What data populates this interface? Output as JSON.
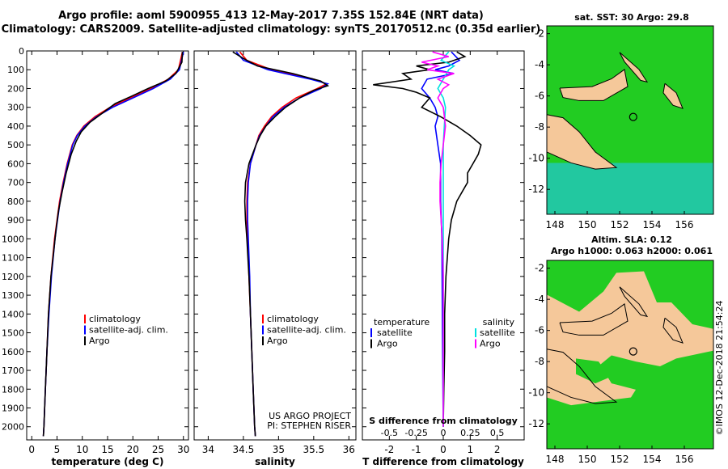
{
  "title": {
    "line1": "Argo profile: aoml 5900955_413 12-May-2017 7.35S 152.84E (NRT data)",
    "line2": "Climatology: CARS2009. Satellite-adjusted climatology: synTS_20170512.nc (0.35d earlier)"
  },
  "map_titles": {
    "sst": "sat. SST: 30 Argo: 29.8",
    "altim1": "Altim. SLA: 0.12",
    "altim2": "Argo h1000: 0.063 h2000: 0.061"
  },
  "credit": {
    "line1": "US ARGO PROJECT",
    "line2": "PI: STEPHEN RISER"
  },
  "timestamp": "©IMOS 12-Dec-2018 21:54:24",
  "colors": {
    "climatology": "#ff0000",
    "satellite": "#0000ff",
    "argo": "#000000",
    "sal_satellite": "#00e0e0",
    "sal_argo": "#ff00ff",
    "land": "#f5c89a",
    "warm_water": "#22cc22",
    "cool_water": "#22c8a0"
  },
  "chart_data": [
    {
      "type": "line",
      "name": "temperature",
      "xlabel": "temperature (deg C)",
      "ylabel": "",
      "xlim": [
        -1,
        31
      ],
      "ylim": [
        2070,
        0
      ],
      "xticks": [
        0,
        5,
        10,
        15,
        20,
        25,
        30
      ],
      "yticks": [
        0,
        100,
        200,
        300,
        400,
        500,
        600,
        700,
        800,
        900,
        1000,
        1100,
        1200,
        1300,
        1400,
        1500,
        1600,
        1700,
        1800,
        1900,
        2000
      ],
      "legend": [
        "climatology",
        "satellite-adj. clim.",
        "Argo"
      ],
      "series": [
        {
          "name": "climatology",
          "depth": [
            5,
            100,
            150,
            200,
            250,
            300,
            350,
            400,
            450,
            500,
            600,
            700,
            800,
            900,
            1000,
            1200,
            1400,
            1600,
            1800,
            2000,
            2050
          ],
          "values": [
            29.8,
            29.0,
            27.0,
            23.5,
            19.5,
            15.5,
            12.5,
            10.3,
            8.9,
            8.0,
            7.0,
            6.2,
            5.5,
            5.0,
            4.5,
            3.8,
            3.3,
            3.0,
            2.7,
            2.4,
            2.3
          ]
        },
        {
          "name": "satellite-adj. clim.",
          "depth": [
            5,
            100,
            150,
            200,
            250,
            300,
            350,
            400,
            450,
            500,
            600,
            700,
            800,
            900,
            1000,
            1200,
            1400,
            1600,
            1800,
            2000,
            2050
          ],
          "values": [
            30.0,
            29.2,
            27.4,
            24.0,
            20.0,
            16.0,
            12.8,
            10.5,
            9.0,
            8.1,
            7.1,
            6.3,
            5.6,
            5.1,
            4.6,
            3.9,
            3.4,
            3.0,
            2.7,
            2.4,
            2.3
          ]
        },
        {
          "name": "Argo",
          "depth": [
            5,
            60,
            120,
            160,
            200,
            240,
            280,
            330,
            380,
            430,
            480,
            550,
            650,
            750,
            850,
            950,
            1050,
            1200,
            1400,
            1600,
            1800,
            2000,
            2050
          ],
          "values": [
            29.8,
            29.7,
            28.5,
            26.5,
            23.0,
            19.8,
            16.5,
            14.0,
            11.5,
            9.8,
            8.8,
            7.8,
            6.8,
            6.0,
            5.3,
            4.8,
            4.4,
            3.8,
            3.3,
            3.0,
            2.7,
            2.4,
            2.3
          ]
        }
      ]
    },
    {
      "type": "line",
      "name": "salinity",
      "xlabel": "salinity",
      "xlim": [
        33.8,
        36.1
      ],
      "ylim": [
        2070,
        0
      ],
      "xticks": [
        34,
        34.5,
        35,
        35.5,
        36
      ],
      "legend": [
        "climatology",
        "satellite-adj. clim.",
        "Argo"
      ],
      "series": [
        {
          "name": "climatology",
          "depth": [
            5,
            50,
            100,
            150,
            175,
            200,
            250,
            300,
            350,
            400,
            450,
            500,
            600,
            700,
            800,
            900,
            1000,
            1200,
            1400,
            1600,
            1800,
            2000,
            2050
          ],
          "values": [
            34.45,
            34.55,
            34.9,
            35.5,
            35.68,
            35.55,
            35.25,
            35.05,
            34.9,
            34.8,
            34.72,
            34.68,
            34.6,
            34.56,
            34.55,
            34.55,
            34.56,
            34.58,
            34.6,
            34.62,
            34.64,
            34.66,
            34.67
          ]
        },
        {
          "name": "satellite-adj. clim.",
          "depth": [
            5,
            50,
            100,
            150,
            175,
            200,
            250,
            300,
            350,
            400,
            450,
            500,
            600,
            700,
            800,
            900,
            1000,
            1200,
            1400,
            1600,
            1800,
            2000,
            2050
          ],
          "values": [
            34.4,
            34.5,
            34.85,
            35.45,
            35.7,
            35.6,
            35.3,
            35.08,
            34.92,
            34.82,
            34.73,
            34.68,
            34.6,
            34.57,
            34.56,
            34.56,
            34.57,
            34.59,
            34.6,
            34.62,
            34.64,
            34.66,
            34.67
          ]
        },
        {
          "name": "Argo",
          "depth": [
            5,
            40,
            80,
            120,
            160,
            185,
            210,
            250,
            300,
            350,
            400,
            450,
            500,
            600,
            700,
            800,
            900,
            1000,
            1200,
            1400,
            1600,
            1800,
            2000,
            2050
          ],
          "values": [
            34.35,
            34.5,
            34.7,
            35.2,
            35.6,
            35.7,
            35.5,
            35.3,
            35.1,
            34.95,
            34.82,
            34.74,
            34.68,
            34.58,
            34.53,
            34.52,
            34.53,
            34.55,
            34.58,
            34.6,
            34.62,
            34.64,
            34.66,
            34.67
          ]
        }
      ]
    },
    {
      "type": "line",
      "name": "differences",
      "xlabel": "T difference from climatology",
      "xlabel2": "S difference from climatology",
      "xlim": [
        -3,
        3
      ],
      "ylim": [
        2070,
        0
      ],
      "xticks": [
        -2,
        -1,
        0,
        1,
        2
      ],
      "xticks2": [
        "-0.5",
        "-0.25",
        "0",
        "0.25",
        "0.5"
      ],
      "legend_left_title": "temperature",
      "legend_right_title": "salinity",
      "legend_left": [
        "satellite",
        "Argo"
      ],
      "legend_right": [
        "satellite",
        "Argo"
      ],
      "series": [
        {
          "name": "T satellite",
          "depth": [
            5,
            50,
            80,
            100,
            120,
            150,
            200,
            250,
            300,
            350,
            400,
            500,
            600,
            800,
            1000,
            1500,
            2000
          ],
          "values": [
            0.3,
            0.6,
            0.2,
            -0.3,
            0.4,
            -0.6,
            -0.8,
            -0.5,
            -0.3,
            -0.2,
            -0.3,
            -0.2,
            -0.1,
            -0.1,
            -0.05,
            -0.03,
            0.0
          ]
        },
        {
          "name": "T Argo",
          "depth": [
            5,
            30,
            60,
            80,
            100,
            120,
            150,
            180,
            200,
            220,
            250,
            300,
            350,
            400,
            450,
            500,
            550,
            600,
            650,
            700,
            750,
            800,
            900,
            1000,
            1200,
            1400,
            1600,
            1800,
            2000
          ],
          "values": [
            0.5,
            0.8,
            0.2,
            -1.0,
            -0.5,
            -1.5,
            -1.2,
            -2.6,
            -1.5,
            -1.0,
            -0.5,
            -0.8,
            -0.1,
            0.5,
            1.0,
            1.4,
            1.3,
            1.1,
            0.9,
            0.9,
            0.7,
            0.5,
            0.3,
            0.2,
            0.1,
            0.05,
            0.05,
            0.02,
            0.0
          ]
        },
        {
          "name": "S satellite",
          "depth": [
            5,
            50,
            80,
            100,
            150,
            200,
            250,
            300,
            400,
            500,
            600,
            800,
            1000,
            1500,
            2000
          ],
          "values": [
            0.05,
            -0.02,
            0.1,
            0.05,
            0.0,
            -0.05,
            0.0,
            0.02,
            0.01,
            0.0,
            0.0,
            0.0,
            0.0,
            0.0,
            0.0
          ]
        },
        {
          "name": "S Argo",
          "depth": [
            5,
            30,
            60,
            80,
            100,
            120,
            150,
            180,
            200,
            250,
            300,
            400,
            500,
            600,
            700,
            800,
            1000,
            1200,
            1500,
            1800,
            2000
          ],
          "values": [
            -0.1,
            0.05,
            -0.2,
            -0.05,
            -0.15,
            0.1,
            -0.05,
            0.05,
            0.0,
            -0.05,
            0.0,
            0.02,
            0.0,
            -0.02,
            -0.03,
            -0.03,
            -0.01,
            0.0,
            0.0,
            0.0,
            0.0
          ]
        }
      ]
    },
    {
      "type": "heatmap",
      "name": "sst-map",
      "xticks": [
        148,
        150,
        152,
        154,
        156
      ],
      "yticks": [
        -2,
        -4,
        -6,
        -8,
        -10,
        -12
      ],
      "xlim": [
        147.5,
        157.8
      ],
      "ylim": [
        -13.6,
        -1.5
      ],
      "marker": {
        "lon": 152.84,
        "lat": -7.35
      }
    },
    {
      "type": "heatmap",
      "name": "altimetry-map",
      "xticks": [
        148,
        150,
        152,
        154,
        156
      ],
      "yticks": [
        -2,
        -4,
        -6,
        -8,
        -10,
        -12
      ],
      "xlim": [
        147.5,
        157.8
      ],
      "ylim": [
        -13.6,
        -1.5
      ],
      "marker": {
        "lon": 152.84,
        "lat": -7.35
      }
    }
  ]
}
